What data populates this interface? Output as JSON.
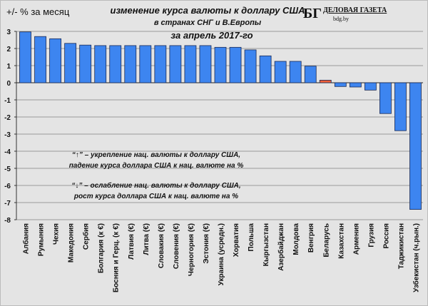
{
  "chart_data": {
    "type": "bar",
    "title": "изменение  курса валюты к доллару США",
    "subtitle": "в странах СНГ и В.Европы",
    "period": "за апрель 2017-го",
    "ylabel": "+/- % за месяц",
    "ylim": [
      -8,
      3
    ],
    "yticks": [
      3,
      2,
      1,
      0,
      -1,
      -2,
      -3,
      -4,
      -5,
      -6,
      -7,
      -8
    ],
    "grid": true,
    "categories": [
      "Албания",
      "Румыния",
      "Чехия",
      "Македония",
      "Сербия",
      "Болгария (к €)",
      "Босния и Герц. (к €)",
      "Латвия (€)",
      "Литва (€)",
      "Словакия (€)",
      "Словения (€)",
      "Черногория (€)",
      "Эстония (€)",
      "Украина (усредн.)",
      "Хорватия",
      "Польша",
      "Кыргызстан",
      "Азербайджан",
      "Молдова",
      "Венгрия",
      "Беларусь",
      "Казахстан",
      "Армения",
      "Грузия",
      "Россия",
      "Таджикистан",
      "Узбекистан (ч.рын.)"
    ],
    "values": [
      2.97,
      2.7,
      2.57,
      2.3,
      2.2,
      2.17,
      2.17,
      2.17,
      2.17,
      2.17,
      2.17,
      2.17,
      2.17,
      2.07,
      2.07,
      1.92,
      1.57,
      1.25,
      1.25,
      0.97,
      0.15,
      -0.22,
      -0.25,
      -0.43,
      -1.8,
      -2.8,
      -7.4
    ],
    "colors": {
      "default": "#3d85f0",
      "highlight": "#f0603a",
      "highlight_category": "Беларусь",
      "border": "#1a2a55"
    },
    "annotations": [
      "“↑” – укрепление нац. валюты к доллару США,",
      "падение курса доллара США к нац. валюте на %",
      "“↓” – ослабление нац. валюты к доллару США,",
      "рост курса доллара США к нац. валюте на %"
    ]
  },
  "logo": {
    "mark": "БГ",
    "name": "ДЕЛОВАЯ ГАЗЕТА",
    "site": "bdg.by"
  }
}
